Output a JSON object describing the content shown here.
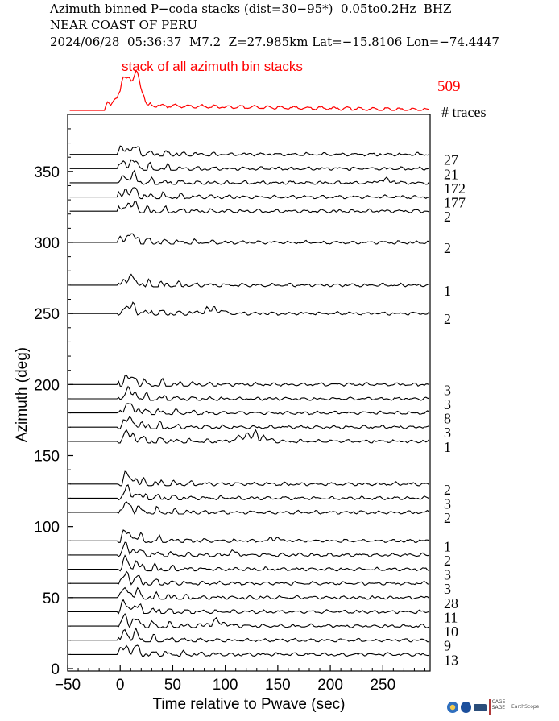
{
  "header": {
    "line1": "Azimuth binned P−coda stacks (dist=30−95*)  0.05to0.2Hz  BHZ",
    "line2": "NEAR COAST OF PERU",
    "line3": "2024/06/28  05:36:37  M7.2  Z=27.985km Lat=−15.8106 Lon=−74.4447"
  },
  "chart_data": {
    "type": "line",
    "xlabel": "Time relative to Pwave (sec)",
    "ylabel": "Azimuth (deg)",
    "xlim": [
      -50,
      295
    ],
    "ylim": [
      0,
      390
    ],
    "xticks": [
      -50,
      0,
      50,
      100,
      150,
      200,
      250
    ],
    "yticks": [
      0,
      50,
      100,
      150,
      200,
      250,
      300,
      350
    ],
    "stack_label": "stack of all azimuth bin stacks",
    "stack_total_traces": "509",
    "traces_header": "# traces",
    "colors": {
      "stack": "#ff0000",
      "traces": "#000000"
    },
    "series": [
      {
        "azimuth": 362,
        "traces": "27"
      },
      {
        "azimuth": 352,
        "traces": "21"
      },
      {
        "azimuth": 342,
        "traces": "172"
      },
      {
        "azimuth": 332,
        "traces": "177"
      },
      {
        "azimuth": 322,
        "traces": "2"
      },
      {
        "azimuth": 300,
        "traces": "2"
      },
      {
        "azimuth": 270,
        "traces": "1"
      },
      {
        "azimuth": 250,
        "traces": "2"
      },
      {
        "azimuth": 200,
        "traces": "3"
      },
      {
        "azimuth": 190,
        "traces": "3"
      },
      {
        "azimuth": 180,
        "traces": "8"
      },
      {
        "azimuth": 170,
        "traces": "3"
      },
      {
        "azimuth": 160,
        "traces": "1"
      },
      {
        "azimuth": 130,
        "traces": "2"
      },
      {
        "azimuth": 120,
        "traces": "3"
      },
      {
        "azimuth": 110,
        "traces": "2"
      },
      {
        "azimuth": 90,
        "traces": "1"
      },
      {
        "azimuth": 80,
        "traces": "2"
      },
      {
        "azimuth": 70,
        "traces": "3"
      },
      {
        "azimuth": 60,
        "traces": "3"
      },
      {
        "azimuth": 50,
        "traces": "28"
      },
      {
        "azimuth": 40,
        "traces": "11"
      },
      {
        "azimuth": 30,
        "traces": "10"
      },
      {
        "azimuth": 20,
        "traces": "9"
      },
      {
        "azimuth": 10,
        "traces": "13"
      }
    ]
  },
  "logos": [
    "nsf-logo",
    "cage-sage-logo",
    "earthscope-logo"
  ]
}
